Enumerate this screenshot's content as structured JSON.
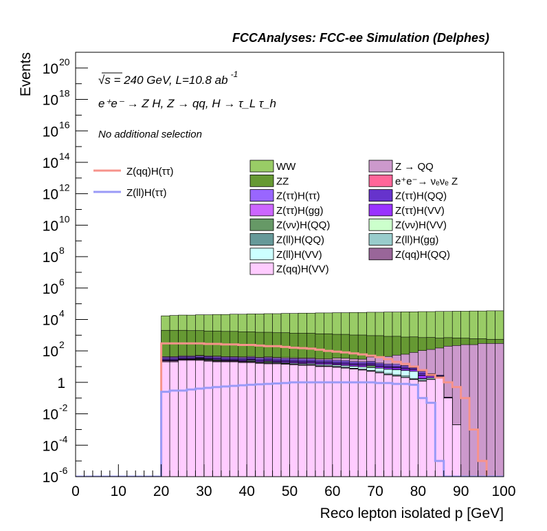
{
  "header": {
    "title": "FCCAnalyses: FCC-ee Simulation (Delphes)",
    "line1": "√s = 240 GeV, L=10.8 ab",
    "line1_sup": "-1",
    "line2": "e⁺e⁻ → Z H, Z → qq, H → τ_L τ_h",
    "selection": "No additional selection"
  },
  "axes": {
    "xlabel": "Reco lepton isolated p [GeV]",
    "ylabel": "Events",
    "xticks": [
      "0",
      "10",
      "20",
      "30",
      "40",
      "50",
      "60",
      "70",
      "80",
      "90",
      "100"
    ],
    "yticks": [
      {
        "base": "10",
        "exp": "20"
      },
      {
        "base": "10",
        "exp": "18"
      },
      {
        "base": "10",
        "exp": "16"
      },
      {
        "base": "10",
        "exp": "14"
      },
      {
        "base": "10",
        "exp": "12"
      },
      {
        "base": "10",
        "exp": "10"
      },
      {
        "base": "10",
        "exp": "8"
      },
      {
        "base": "10",
        "exp": "6"
      },
      {
        "base": "10",
        "exp": "4"
      },
      {
        "base": "10",
        "exp": "2"
      },
      {
        "base": "1",
        "exp": ""
      },
      {
        "base": "10",
        "exp": "-2"
      },
      {
        "base": "10",
        "exp": "-4"
      },
      {
        "base": "10",
        "exp": "-6"
      }
    ]
  },
  "legend_signal": [
    {
      "label": "Z(qq)H(ττ)",
      "color": "#f7938b"
    },
    {
      "label": "Z(ll)H(ττ)",
      "color": "#9a9af7"
    }
  ],
  "legend_bkg": [
    {
      "label": "WW",
      "color": "#99cc66"
    },
    {
      "label": "Z → QQ",
      "color": "#cc99cc"
    },
    {
      "label": "ZZ",
      "color": "#669933"
    },
    {
      "label": "e⁺e⁻→ νₑνₑ Z",
      "color": "#ff6699"
    },
    {
      "label": "Z(ττ)H(ττ)",
      "color": "#9966ff"
    },
    {
      "label": "Z(ττ)H(QQ)",
      "color": "#6633cc"
    },
    {
      "label": "Z(ττ)H(gg)",
      "color": "#cc66ff"
    },
    {
      "label": "Z(ττ)H(VV)",
      "color": "#9933ff"
    },
    {
      "label": "Z(νν)H(QQ)",
      "color": "#669966"
    },
    {
      "label": "Z(νν)H(VV)",
      "color": "#ccffcc"
    },
    {
      "label": "Z(ll)H(QQ)",
      "color": "#669999"
    },
    {
      "label": "Z(ll)H(gg)",
      "color": "#99cccc"
    },
    {
      "label": "Z(ll)H(VV)",
      "color": "#ccffff"
    },
    {
      "label": "Z(qq)H(QQ)",
      "color": "#996699"
    },
    {
      "label": "Z(qq)H(VV)",
      "color": "#ffccff"
    }
  ],
  "chart_data": {
    "type": "area",
    "title": "FCCAnalyses: FCC-ee Simulation (Delphes)",
    "xlabel": "Reco lepton isolated p [GeV]",
    "ylabel": "Events",
    "xlim": [
      0,
      100
    ],
    "ylim": [
      1e-06,
      1e+21
    ],
    "y_scale": "log",
    "grid": false,
    "bin_width": 2,
    "x": [
      0,
      2,
      4,
      6,
      8,
      10,
      12,
      14,
      16,
      18,
      20,
      22,
      24,
      26,
      28,
      30,
      32,
      34,
      36,
      38,
      40,
      42,
      44,
      46,
      48,
      50,
      52,
      54,
      56,
      58,
      60,
      62,
      64,
      66,
      68,
      70,
      72,
      74,
      76,
      78,
      80,
      82,
      84,
      86,
      88,
      90,
      92,
      94,
      96,
      98
    ],
    "stack_series": [
      {
        "name": "Z(qq)H(VV)",
        "values": [
          0,
          0,
          0,
          0,
          0,
          0,
          0,
          0,
          0,
          0,
          20,
          20,
          25,
          25,
          25,
          22,
          20,
          20,
          20,
          18,
          18,
          16,
          15,
          15,
          14,
          13,
          12,
          12,
          10,
          10,
          9,
          8,
          7,
          6,
          5,
          4,
          3,
          2.5,
          2,
          1.5,
          1.2,
          1.5,
          2,
          0.1,
          0.002,
          0,
          0,
          0,
          0,
          0
        ]
      },
      {
        "name": "Z(qq)H(QQ)",
        "values": [
          0,
          0,
          0,
          0,
          0,
          0,
          0,
          0,
          0,
          0,
          3,
          3,
          3,
          3,
          2.5,
          2.5,
          2,
          2,
          2,
          2,
          1.8,
          1.6,
          1.5,
          1.4,
          1.3,
          1.2,
          1,
          1,
          0.9,
          0.8,
          0.7,
          0.6,
          0.5,
          0.4,
          0.3,
          0.25,
          0.2,
          0.15,
          0.1,
          0.08,
          0.05,
          0.02,
          0.01,
          0,
          0,
          0,
          0,
          0,
          0,
          0
        ]
      },
      {
        "name": "Z(ll)H(gg)",
        "values": [
          0,
          0,
          0,
          0,
          0,
          0,
          0,
          0,
          0,
          0,
          0.3,
          0.2,
          0.4,
          0.4,
          0.5,
          0.6,
          0.7,
          0.6,
          0.5,
          0.8,
          0.7,
          0.6,
          0.8,
          0.9,
          0.6,
          0.8,
          0.7,
          0.9,
          0.7,
          0.6,
          0.8,
          0.7,
          0.5,
          0.6,
          0.5,
          0.7,
          0.5,
          0.4,
          0.5,
          0.2,
          0.05,
          0.1,
          0.01,
          0,
          0,
          0,
          0,
          0,
          0,
          0
        ]
      },
      {
        "name": "Z(ll)H(VV)",
        "values": [
          0,
          0,
          0,
          0,
          0,
          0,
          0,
          0,
          0,
          0,
          0.3,
          0.4,
          0.5,
          0.5,
          0.6,
          0.6,
          0.8,
          0.8,
          0.9,
          1,
          1.2,
          1.3,
          1.4,
          1.5,
          1.6,
          1.8,
          1.8,
          2,
          2,
          2.2,
          2.2,
          2.4,
          2.5,
          2.6,
          2.8,
          3,
          3,
          3.2,
          3,
          3.2,
          0.3,
          0.3,
          0.1,
          0,
          0,
          0,
          0,
          0,
          0,
          0
        ]
      },
      {
        "name": "Z(ll)H(QQ)",
        "values": [
          0,
          0,
          0,
          0,
          0,
          0,
          0,
          0,
          0,
          0,
          0.1,
          0.05,
          0.1,
          0.05,
          0.1,
          0.1,
          0.05,
          0.1,
          0.1,
          0.05,
          0.1,
          0.1,
          0.05,
          0.1,
          0.05,
          0.1,
          0.1,
          0.05,
          0.1,
          0.1,
          0.05,
          0.1,
          0.05,
          0.1,
          0.05,
          0.05,
          0.05,
          0.05,
          0.05,
          0.03,
          0.02,
          0.01,
          0,
          0,
          0,
          0,
          0,
          0,
          0,
          0
        ]
      },
      {
        "name": "Z(νν)H(QQ)",
        "values": [
          0,
          0,
          0,
          0,
          0,
          0,
          0,
          0,
          0,
          0,
          0,
          0,
          0,
          0,
          3,
          3,
          3,
          0,
          0,
          0,
          3,
          0,
          3,
          0,
          0,
          0,
          0,
          0,
          0,
          0,
          0,
          0,
          0,
          0,
          3,
          0,
          0,
          0,
          0,
          0,
          0,
          0,
          0,
          0,
          0,
          0,
          0,
          0,
          0,
          0
        ]
      },
      {
        "name": "Z(νν)H(VV)",
        "values": [
          0,
          0,
          0,
          0,
          0,
          0,
          0,
          0,
          0,
          0,
          0,
          0,
          0,
          0,
          0,
          0,
          0,
          0,
          0,
          0,
          0,
          0,
          0,
          0,
          0,
          0,
          0,
          0,
          0,
          0,
          0,
          0,
          0,
          0,
          0,
          0,
          0,
          0,
          0,
          0,
          0.1,
          0.05,
          0.01,
          0,
          0,
          0,
          0,
          0,
          0,
          0
        ]
      },
      {
        "name": "Z(ττ)H(VV)",
        "values": [
          0,
          0,
          0,
          0,
          0,
          0,
          0,
          0,
          0,
          0,
          3,
          3,
          3,
          3,
          3,
          3,
          3,
          3,
          3,
          3,
          3,
          3,
          3,
          3,
          3,
          3,
          3,
          3,
          3,
          3,
          2.5,
          2.5,
          2.5,
          2.5,
          2,
          2,
          2,
          2,
          1.5,
          1.5,
          1,
          0.5,
          0.2,
          0.01,
          0,
          0,
          0,
          0,
          0,
          0
        ]
      },
      {
        "name": "Z(ττ)H(gg)",
        "values": [
          0,
          0,
          0,
          0,
          0,
          0,
          0,
          0,
          0,
          0,
          1,
          1,
          1,
          1,
          1,
          1,
          1,
          1,
          1,
          1,
          1,
          1,
          1,
          1,
          1,
          1,
          1,
          1,
          1,
          1,
          0.8,
          0.8,
          0.8,
          0.8,
          0.7,
          0.7,
          0.6,
          0.5,
          0.4,
          0.3,
          0.2,
          0.1,
          0.05,
          0,
          0,
          0,
          0,
          0,
          0,
          0
        ]
      },
      {
        "name": "Z(ττ)H(QQ)",
        "values": [
          0,
          0,
          0,
          0,
          0,
          0,
          0,
          0,
          0,
          0,
          5,
          5,
          5,
          5,
          5,
          5,
          5,
          5,
          5,
          5,
          5,
          5,
          5,
          5,
          5,
          5,
          5,
          5,
          4,
          4,
          4,
          4,
          3,
          3,
          3,
          3,
          2,
          2,
          2,
          1.5,
          1,
          0.5,
          0.2,
          0,
          0,
          0,
          0,
          0,
          0,
          0
        ]
      },
      {
        "name": "Z(ττ)H(ττ)",
        "values": [
          0,
          0,
          0,
          0,
          0,
          0,
          0,
          0,
          0,
          0,
          6,
          6,
          6,
          6,
          6,
          6,
          6,
          6,
          6,
          6,
          6,
          6,
          6,
          6,
          6,
          6,
          6,
          6,
          5,
          5,
          5,
          5,
          4,
          4,
          4,
          3,
          3,
          3,
          2,
          2,
          1,
          0.5,
          0.3,
          0.002,
          0,
          0,
          0,
          0,
          0,
          0
        ]
      },
      {
        "name": "e⁺e⁻→ νₑνₑ Z",
        "values": [
          0,
          0,
          0,
          0,
          0,
          0,
          0,
          0,
          0,
          0,
          0.3,
          0.5,
          0.3,
          0.2,
          0.01,
          0,
          0,
          0,
          0,
          0,
          0,
          0,
          0,
          0,
          0,
          0,
          0,
          0,
          0,
          0,
          0,
          0,
          0,
          0,
          0,
          0,
          0,
          0,
          0,
          0,
          0,
          0,
          0,
          0,
          0,
          0,
          0,
          0,
          0,
          0
        ]
      },
      {
        "name": "Z → QQ",
        "values": [
          0,
          0,
          0,
          0,
          0,
          0,
          0,
          0,
          0,
          0,
          5,
          5,
          5,
          5,
          5,
          5,
          5,
          5,
          5,
          5,
          5,
          5,
          5,
          5,
          5,
          5,
          5,
          5,
          5,
          5,
          10,
          10,
          10,
          10,
          20,
          20,
          30,
          40,
          50,
          70,
          100,
          120,
          150,
          200,
          220,
          250,
          250,
          300,
          300,
          300
        ]
      },
      {
        "name": "ZZ",
        "values": [
          0,
          0,
          0,
          0,
          0,
          0,
          0,
          0,
          0,
          0,
          2000,
          2000,
          2000,
          1900,
          1900,
          1800,
          1800,
          1700,
          1700,
          1600,
          1600,
          1500,
          1500,
          1400,
          1400,
          1300,
          1300,
          1300,
          1200,
          1200,
          1100,
          1100,
          1000,
          1000,
          900,
          900,
          800,
          800,
          700,
          700,
          600,
          600,
          500,
          500,
          450,
          400,
          350,
          300,
          250,
          250
        ]
      },
      {
        "name": "WW",
        "values": [
          0,
          0,
          0,
          0,
          0,
          0,
          0,
          0,
          0,
          0,
          15000,
          16000,
          17000,
          17000,
          18000,
          18000,
          19000,
          19000,
          20000,
          20000,
          21000,
          21000,
          22000,
          22000,
          23000,
          23000,
          24000,
          24000,
          25000,
          25000,
          26000,
          26000,
          27000,
          27000,
          28000,
          28000,
          29000,
          29000,
          30000,
          30000,
          31000,
          31000,
          32000,
          32000,
          33000,
          33000,
          34000,
          34000,
          35000,
          35000
        ]
      }
    ],
    "signal_series": [
      {
        "name": "Z(qq)H(ττ)",
        "values": [
          0,
          0,
          0,
          0,
          0,
          0,
          0,
          0,
          0,
          0,
          300,
          300,
          300,
          300,
          300,
          280,
          280,
          260,
          260,
          240,
          240,
          220,
          200,
          200,
          180,
          160,
          150,
          140,
          120,
          100,
          90,
          80,
          70,
          60,
          50,
          40,
          30,
          20,
          15,
          10,
          6,
          3,
          2,
          1,
          0.5,
          0.1,
          0.001,
          1e-05,
          0,
          0
        ]
      },
      {
        "name": "Z(ll)H(ττ)",
        "values": [
          0,
          0,
          0,
          0,
          0,
          0,
          0,
          0,
          0,
          0,
          0.25,
          0.3,
          0.3,
          0.35,
          0.4,
          0.45,
          0.5,
          0.55,
          0.6,
          0.65,
          0.7,
          0.75,
          0.8,
          0.85,
          0.9,
          1,
          1,
          1,
          1,
          1,
          1,
          1,
          1,
          1,
          1,
          0.9,
          0.9,
          0.8,
          0.8,
          0.7,
          0.1,
          0.05,
          1e-05,
          0,
          0,
          0,
          0,
          0,
          0,
          0
        ]
      }
    ]
  }
}
